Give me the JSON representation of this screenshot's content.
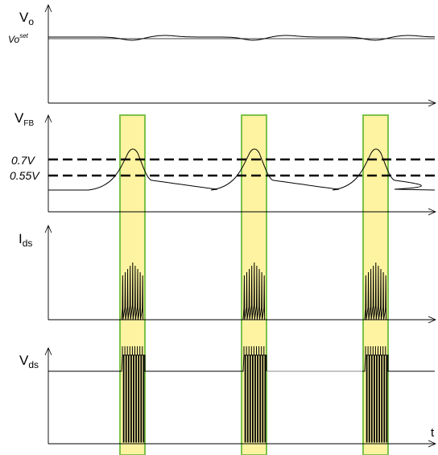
{
  "colors": {
    "highlight_fill": "#fdf3a0",
    "highlight_stroke": "#7cc24a",
    "waveform": "#000000"
  },
  "panels": {
    "vo": {
      "label_main": "V",
      "label_sub": "o",
      "set_label_main": "Vo",
      "set_label_sup": "set"
    },
    "vfb": {
      "label_main": "V",
      "label_sub": "FB",
      "threshold_high": "0.7V",
      "threshold_low": "0.55V"
    },
    "ids": {
      "label_main": "I",
      "label_sub": "ds"
    },
    "vds": {
      "label_main": "V",
      "label_sub": "ds"
    }
  },
  "time_axis_label": "t"
}
